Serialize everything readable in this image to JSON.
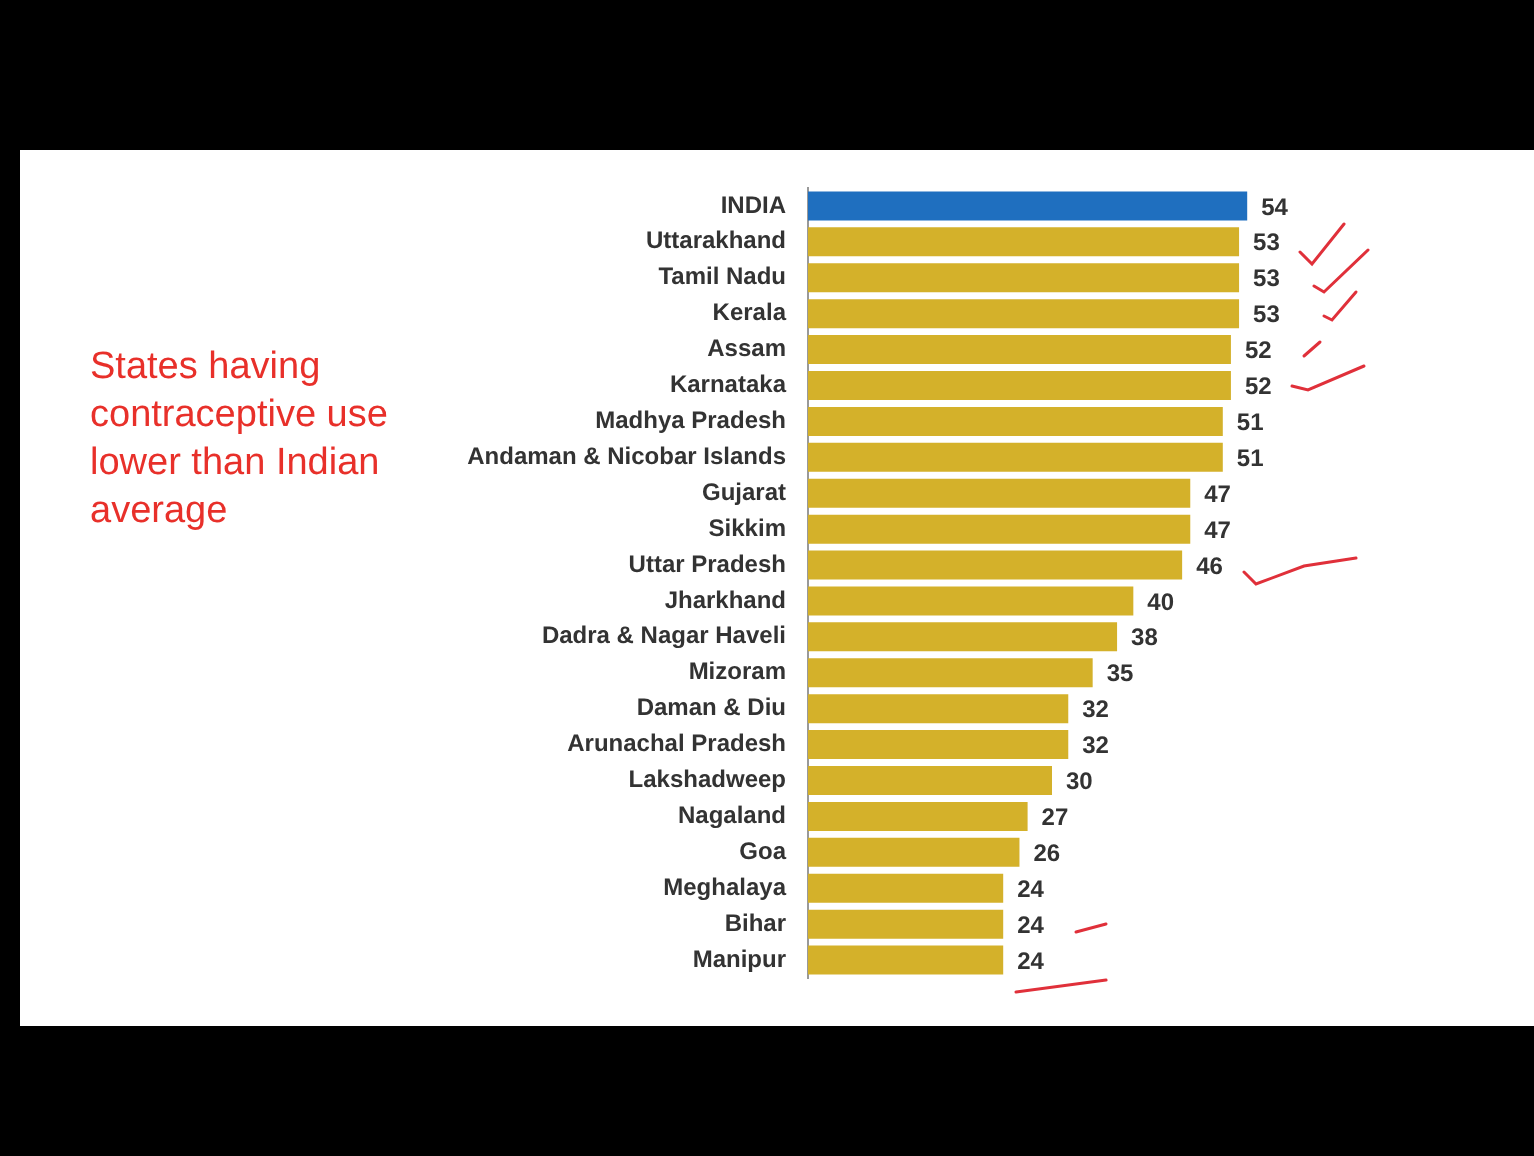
{
  "chart_data": {
    "type": "bar",
    "orientation": "horizontal",
    "data_labels": true,
    "legend": false,
    "categories": [
      "INDIA",
      "Uttarakhand",
      "Tamil Nadu",
      "Kerala",
      "Assam",
      "Karnataka",
      "Madhya Pradesh",
      "Andaman & Nicobar Islands",
      "Gujarat",
      "Sikkim",
      "Uttar Pradesh",
      "Jharkhand",
      "Dadra & Nagar Haveli",
      "Mizoram",
      "Daman & Diu",
      "Arunachal Pradesh",
      "Lakshadweep",
      "Nagaland",
      "Goa",
      "Meghalaya",
      "Bihar",
      "Manipur"
    ],
    "values": [
      54,
      53,
      53,
      53,
      52,
      52,
      51,
      51,
      47,
      47,
      46,
      40,
      38,
      35,
      32,
      32,
      30,
      27,
      26,
      24,
      24,
      24
    ],
    "colors": [
      "#1f6fbf",
      "#d4b12a",
      "#d4b12a",
      "#d4b12a",
      "#d4b12a",
      "#d4b12a",
      "#d4b12a",
      "#d4b12a",
      "#d4b12a",
      "#d4b12a",
      "#d4b12a",
      "#d4b12a",
      "#d4b12a",
      "#d4b12a",
      "#d4b12a",
      "#d4b12a",
      "#d4b12a",
      "#d4b12a",
      "#d4b12a",
      "#d4b12a",
      "#d4b12a",
      "#d4b12a"
    ],
    "annotations": [
      "States having contraceptive use lower than Indian average"
    ]
  }
}
